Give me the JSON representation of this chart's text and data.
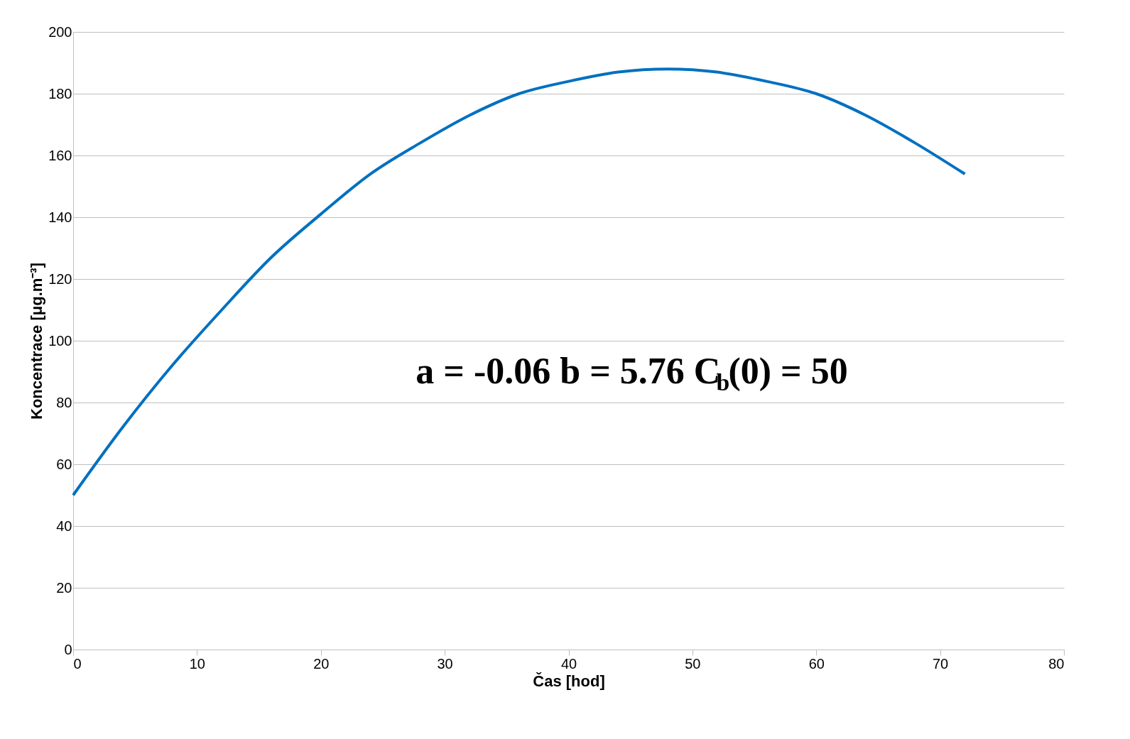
{
  "chart_data": {
    "type": "line",
    "xlabel": "Čas [hod]",
    "ylabel": "Koncentrace [μg.m⁻³]",
    "x": [
      0,
      4,
      8,
      12,
      16,
      20,
      24,
      28,
      32,
      36,
      40,
      44,
      48,
      52,
      56,
      60,
      64,
      68,
      72
    ],
    "series": [
      {
        "color": "#0070c0",
        "values": [
          50,
          72,
          92,
          110,
          127,
          141,
          154,
          164,
          173,
          180,
          184,
          187,
          188,
          187,
          184,
          180,
          173,
          164,
          154
        ]
      }
    ],
    "xlim": [
      0,
      80
    ],
    "xticks": [
      0,
      10,
      20,
      30,
      40,
      50,
      60,
      70,
      80
    ],
    "ylim": [
      0,
      200
    ],
    "yticks": [
      0,
      20,
      40,
      60,
      80,
      100,
      120,
      140,
      160,
      180,
      200
    ],
    "grid": "y",
    "legend": false,
    "marker": "none",
    "line_style": "solid",
    "annotations": [
      "a = -0.06  b = 5.76  C$_{b}$(0) = 50"
    ]
  }
}
